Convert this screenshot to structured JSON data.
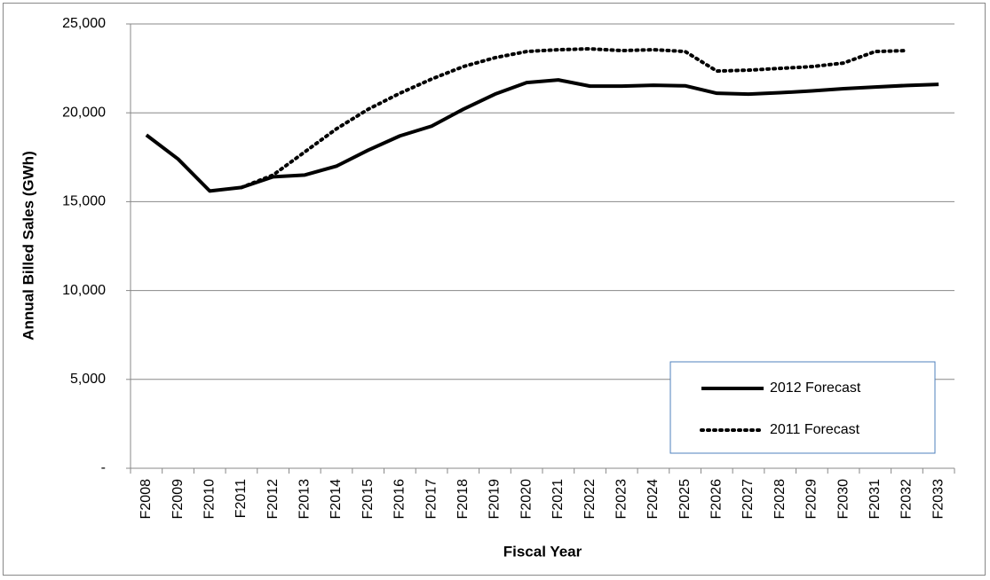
{
  "chart_data": {
    "type": "line",
    "xlabel": "Fiscal Year",
    "ylabel": "Annual Billed Sales (GWh)",
    "categories": [
      "F2008",
      "F2009",
      "F2010",
      "F2011",
      "F2012",
      "F2013",
      "F2014",
      "F2015",
      "F2016",
      "F2017",
      "F2018",
      "F2019",
      "F2020",
      "F2021",
      "F2022",
      "F2023",
      "F2024",
      "F2025",
      "F2026",
      "F2027",
      "F2028",
      "F2029",
      "F2030",
      "F2031",
      "F2032",
      "F2033"
    ],
    "series": [
      {
        "name": "2012 Forecast",
        "color": "#000000",
        "dash": "solid",
        "values": [
          18750,
          17400,
          15600,
          15800,
          16400,
          16500,
          17000,
          17900,
          18700,
          19250,
          20200,
          21050,
          21700,
          21850,
          21500,
          21500,
          21550,
          21520,
          21100,
          21050,
          21130,
          21230,
          21360,
          21450,
          21540,
          21600
        ]
      },
      {
        "name": "2011 Forecast",
        "color": "#000000",
        "dash": "dotted",
        "values": [
          null,
          null,
          null,
          15800,
          16500,
          17800,
          19100,
          20200,
          21100,
          21900,
          22600,
          23100,
          23450,
          23550,
          23600,
          23500,
          23550,
          23450,
          22350,
          22400,
          22500,
          22600,
          22800,
          23450,
          23500,
          null
        ]
      }
    ],
    "ylim": [
      0,
      25000
    ],
    "yticks": [
      {
        "value": 0,
        "label": "-"
      },
      {
        "value": 5000,
        "label": "5,000"
      },
      {
        "value": 10000,
        "label": "10,000"
      },
      {
        "value": 15000,
        "label": "15,000"
      },
      {
        "value": 20000,
        "label": "20,000"
      },
      {
        "value": 25000,
        "label": "25,000"
      }
    ],
    "grid": true,
    "legend": "lower-right"
  }
}
